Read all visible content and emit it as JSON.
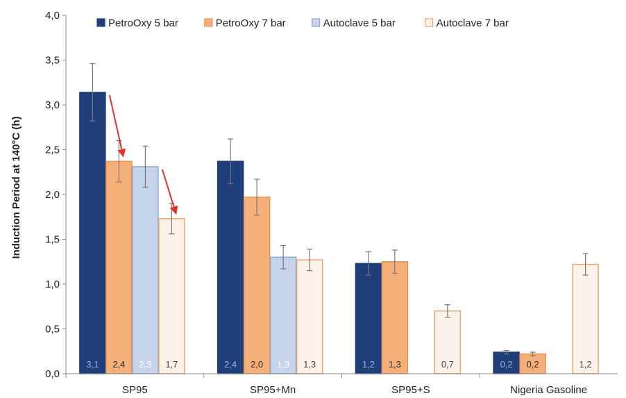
{
  "chart_data": {
    "type": "bar",
    "title": "",
    "xlabel": "",
    "ylabel": "Induction Period at 140°C (h)",
    "ylim": [
      0,
      4
    ],
    "yticks": [
      "0,0",
      "0,5",
      "1,0",
      "1,5",
      "2,0",
      "2,5",
      "3,0",
      "3,5",
      "4,0"
    ],
    "grid": false,
    "legend_position": "top",
    "categories": [
      "SP95",
      "SP95+Mn",
      "SP95+S",
      "Nigeria Gasoline"
    ],
    "series": [
      {
        "name": "PetroOxy 5 bar",
        "values": [
          3.14,
          2.37,
          1.23,
          0.24
        ],
        "errors": [
          0.32,
          0.25,
          0.13,
          0.02
        ],
        "labels": [
          "3,1",
          "2,4",
          "1,2",
          "0,2"
        ],
        "fill": "#1f3e7a",
        "stroke": "#1f3e7a",
        "label_color": "#9fb4d8"
      },
      {
        "name": "PetroOxy 7 bar",
        "values": [
          2.37,
          1.97,
          1.25,
          0.22
        ],
        "errors": [
          0.23,
          0.2,
          0.13,
          0.02
        ],
        "labels": [
          "2,4",
          "2,0",
          "1,3",
          "0,2"
        ],
        "fill": "#f5b07a",
        "stroke": "#e8955a",
        "label_color": "#2a2a2a"
      },
      {
        "name": "Autoclave 5 bar",
        "values": [
          2.31,
          1.3,
          null,
          null
        ],
        "errors": [
          0.23,
          0.13,
          null,
          null
        ],
        "labels": [
          "2,3",
          "1,3",
          "",
          ""
        ],
        "fill": "#c5d4ea",
        "stroke": "#8ea8d0",
        "label_color": "#ffffff"
      },
      {
        "name": "Autoclave 7 bar",
        "values": [
          1.73,
          1.27,
          0.7,
          1.22
        ],
        "errors": [
          0.17,
          0.12,
          0.07,
          0.12
        ],
        "labels": [
          "1,7",
          "1,3",
          "0,7",
          "1,2"
        ],
        "fill": "#fdf2e9",
        "stroke": "#f0a46a",
        "label_color": "#444444"
      }
    ],
    "annotation_color": "#e0332b"
  }
}
